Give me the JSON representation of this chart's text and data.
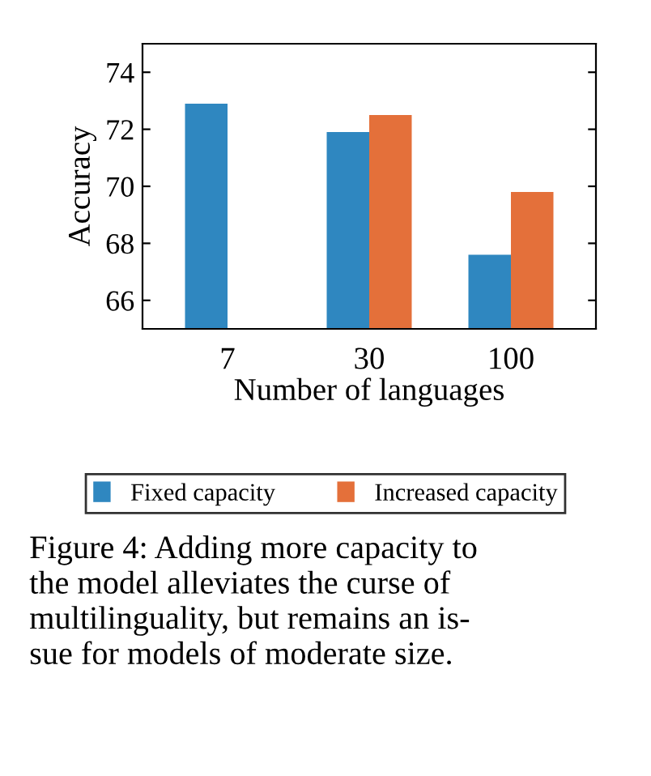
{
  "chart_data": {
    "type": "bar",
    "xlabel": "Number of languages",
    "ylabel": "Accuracy",
    "categories": [
      "7",
      "30",
      "100"
    ],
    "series": [
      {
        "name": "Fixed capacity",
        "color": "#2f87c0",
        "values": [
          72.9,
          71.9,
          67.6
        ]
      },
      {
        "name": "Increased capacity",
        "color": "#e4703a",
        "values": [
          null,
          72.5,
          69.8
        ]
      }
    ],
    "ylim": [
      65,
      75
    ],
    "yticks": [
      66,
      68,
      70,
      72,
      74
    ],
    "grid": false,
    "legend": "bottom",
    "annotations": [
      "Figure 4: Adding more capacity to\nthe model alleviates the curse of\nmultilinguality, but remains an is-\nsue for models of moderate size."
    ]
  }
}
